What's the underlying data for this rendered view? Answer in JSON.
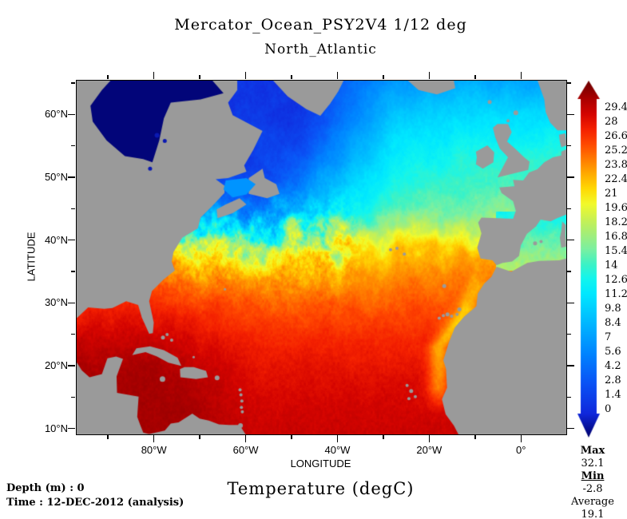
{
  "title": {
    "line1": "Mercator_Ocean_PSY2V4 1/12 deg",
    "line2": "North_Atlantic"
  },
  "variable_title": "Temperature (degC)",
  "footer": {
    "depth": "Depth (m) : 0",
    "time": "Time : 12-DEC-2012 (analysis)"
  },
  "stats": {
    "max_label": "Max",
    "max_value": "32.1",
    "min_label": "Min",
    "min_value": "-2.8",
    "avg_label": "Average",
    "avg_value": "19.1"
  },
  "axes": {
    "x_label": "LONGITUDE",
    "y_label": "LATITUDE",
    "lon_range": [
      -97.0,
      9.7
    ],
    "lat_range": [
      9.2,
      65.5
    ],
    "x_major_ticks": [
      {
        "label": "80°W",
        "lon": -80
      },
      {
        "label": "60°W",
        "lon": -60
      },
      {
        "label": "40°W",
        "lon": -40
      },
      {
        "label": "20°W",
        "lon": -20
      },
      {
        "label": "0°",
        "lon": 0
      }
    ],
    "x_minor_ticks": [
      -90,
      -70,
      -50,
      -30,
      -10
    ],
    "y_major_ticks": [
      {
        "label": "60°N",
        "lat": 60
      },
      {
        "label": "50°N",
        "lat": 50
      },
      {
        "label": "40°N",
        "lat": 40
      },
      {
        "label": "30°N",
        "lat": 30
      },
      {
        "label": "20°N",
        "lat": 20
      },
      {
        "label": "10°N",
        "lat": 10
      }
    ],
    "y_minor_ticks": [
      65,
      55,
      45,
      35,
      25,
      15
    ]
  },
  "colorbar": {
    "tick_labels": [
      "29.4",
      "28",
      "26.6",
      "25.2",
      "23.8",
      "22.4",
      "21",
      "19.6",
      "18.2",
      "16.8",
      "15.4",
      "14",
      "12.6",
      "11.2",
      "9.8",
      "8.4",
      "7",
      "5.6",
      "4.2",
      "2.8",
      "1.4",
      "0"
    ],
    "stops": [
      [
        -2.8,
        "#000069"
      ],
      [
        0,
        "#1028dc"
      ],
      [
        2.8,
        "#0a52f5"
      ],
      [
        5.6,
        "#0084ff"
      ],
      [
        8.4,
        "#00b6ff"
      ],
      [
        11.2,
        "#00e8ff"
      ],
      [
        12.6,
        "#12f5ee"
      ],
      [
        14,
        "#3ef2c4"
      ],
      [
        15.4,
        "#7cf0a0"
      ],
      [
        16.8,
        "#a4ee78"
      ],
      [
        18.2,
        "#caf152"
      ],
      [
        19.6,
        "#f2fa2a"
      ],
      [
        21,
        "#ffd904"
      ],
      [
        22.4,
        "#ffab00"
      ],
      [
        23.8,
        "#ff7a00"
      ],
      [
        25.2,
        "#ff4800"
      ],
      [
        26.6,
        "#f42000"
      ],
      [
        28,
        "#d40400"
      ],
      [
        29.4,
        "#ab0000"
      ],
      [
        32.1,
        "#690000"
      ]
    ],
    "range": [
      0,
      29.4
    ]
  },
  "map_colors": {
    "land": "#9a9a9a",
    "outside_domain": "#ffffff",
    "frame": "#000000"
  },
  "chart_data": {
    "type": "heatmap",
    "title": "Mercator_Ocean_PSY2V4 1/12 deg",
    "subtitle": "North_Atlantic",
    "variable": "Temperature (degC)",
    "depth_m": 0,
    "time": "12-DEC-2012 (analysis)",
    "xlabel": "LONGITUDE",
    "ylabel": "LATITUDE",
    "lon_range_deg": [
      -97.0,
      9.7
    ],
    "lat_range_deg": [
      9.2,
      65.5
    ],
    "colorbar_ticks_degC": [
      0,
      1.4,
      2.8,
      4.2,
      5.6,
      7,
      8.4,
      9.8,
      11.2,
      12.6,
      14,
      15.4,
      16.8,
      18.2,
      19.6,
      21,
      22.4,
      23.8,
      25.2,
      26.6,
      28,
      29.4
    ],
    "stats_degC": {
      "max": 32.1,
      "min": -2.8,
      "average": 19.1
    },
    "approx_mean_sst_by_latitude_degC": [
      {
        "lat": 10,
        "sst": 28.3
      },
      {
        "lat": 15,
        "sst": 27.8
      },
      {
        "lat": 20,
        "sst": 27.2
      },
      {
        "lat": 25,
        "sst": 26.3
      },
      {
        "lat": 30,
        "sst": 24.6
      },
      {
        "lat": 35,
        "sst": 22.6
      },
      {
        "lat": 40,
        "sst": 18.6
      },
      {
        "lat": 45,
        "sst": 13.2
      },
      {
        "lat": 50,
        "sst": 10.7
      },
      {
        "lat": 55,
        "sst": 9.0
      },
      {
        "lat": 60,
        "sst": 7.4
      },
      {
        "lat": 65,
        "sst": 5.5
      }
    ],
    "features": [
      "warm red subtropical/tropical gyre south of 35N (25-29 degC)",
      "sharp Gulf Stream front with eddies near 40N in the west",
      "cold dark-blue Labrador Sea, Davis Strait and Hudson Bay (<3 degC)",
      "warm North Atlantic Drift reaching NW Europe (9-13 degC)",
      "coastal upwelling band (cooler yellow) along NW Africa",
      "grey land mask, white undefined Pacific corner at lower left"
    ],
    "legend_position": "right colorbar with over/under arrows"
  }
}
